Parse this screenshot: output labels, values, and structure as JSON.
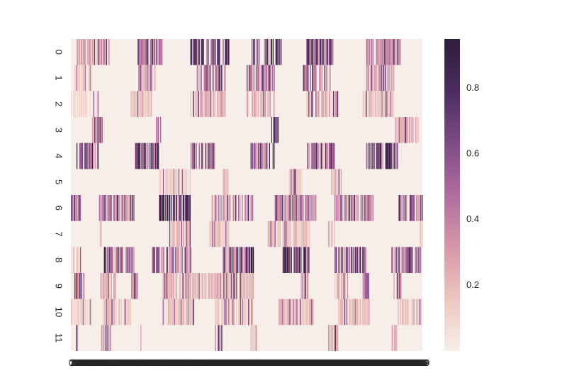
{
  "chart_data": {
    "type": "heatmap",
    "title": "",
    "xlabel": "",
    "ylabel": "",
    "rows": [
      "0",
      "1",
      "2",
      "3",
      "4",
      "5",
      "6",
      "7",
      "8",
      "9",
      "10",
      "11"
    ],
    "n_columns": 500,
    "value_range": [
      0.0,
      0.95
    ],
    "colormap": [
      "#f8eee9",
      "#edc7c0",
      "#d796a8",
      "#b06d9e",
      "#7d4c85",
      "#4a2d5e",
      "#2e1e3b"
    ],
    "colorbar": {
      "ticks": [
        0.2,
        0.4,
        0.6,
        0.8
      ],
      "tick_labels": [
        "0.2",
        "0.4",
        "0.6",
        "0.8"
      ]
    },
    "row_segments": [
      {
        "row": "0",
        "segments": [
          [
            8,
            55,
            0.35
          ],
          [
            95,
            130,
            0.55
          ],
          [
            170,
            225,
            0.75
          ],
          [
            255,
            300,
            0.8
          ],
          [
            335,
            375,
            0.8
          ],
          [
            420,
            470,
            0.45
          ]
        ]
      },
      {
        "row": "1",
        "segments": [
          [
            5,
            30,
            0.15
          ],
          [
            95,
            120,
            0.5
          ],
          [
            175,
            220,
            0.5
          ],
          [
            250,
            290,
            0.45
          ],
          [
            330,
            370,
            0.55
          ],
          [
            420,
            460,
            0.35
          ]
        ]
      },
      {
        "row": "2",
        "segments": [
          [
            0,
            40,
            0.12
          ],
          [
            85,
            115,
            0.25
          ],
          [
            170,
            220,
            0.3
          ],
          [
            250,
            290,
            0.3
          ],
          [
            335,
            380,
            0.3
          ],
          [
            415,
            460,
            0.22
          ]
        ]
      },
      {
        "row": "3",
        "segments": [
          [
            30,
            45,
            0.45
          ],
          [
            120,
            128,
            0.5
          ],
          [
            285,
            295,
            0.85
          ],
          [
            460,
            495,
            0.3
          ]
        ]
      },
      {
        "row": "4",
        "segments": [
          [
            8,
            40,
            0.6
          ],
          [
            90,
            125,
            0.75
          ],
          [
            170,
            205,
            0.5
          ],
          [
            255,
            290,
            0.65
          ],
          [
            335,
            375,
            0.55
          ],
          [
            420,
            465,
            0.8
          ]
        ]
      },
      {
        "row": "5",
        "segments": [
          [
            125,
            170,
            0.15
          ],
          [
            215,
            225,
            0.25
          ],
          [
            310,
            330,
            0.2
          ],
          [
            370,
            385,
            0.25
          ]
        ]
      },
      {
        "row": "6",
        "segments": [
          [
            0,
            15,
            0.6
          ],
          [
            40,
            90,
            0.55
          ],
          [
            125,
            170,
            0.85
          ],
          [
            200,
            260,
            0.45
          ],
          [
            290,
            350,
            0.5
          ],
          [
            375,
            430,
            0.5
          ],
          [
            465,
            500,
            0.55
          ]
        ]
      },
      {
        "row": "7",
        "segments": [
          [
            40,
            45,
            0.25
          ],
          [
            140,
            170,
            0.25
          ],
          [
            195,
            225,
            0.2
          ],
          [
            280,
            340,
            0.25
          ],
          [
            365,
            375,
            0.35
          ],
          [
            495,
            500,
            0.25
          ]
        ]
      },
      {
        "row": "8",
        "segments": [
          [
            0,
            15,
            0.18
          ],
          [
            45,
            90,
            0.6
          ],
          [
            115,
            175,
            0.55
          ],
          [
            215,
            260,
            0.75
          ],
          [
            300,
            340,
            0.8
          ],
          [
            375,
            420,
            0.65
          ],
          [
            455,
            500,
            0.6
          ]
        ]
      },
      {
        "row": "9",
        "segments": [
          [
            5,
            20,
            0.4
          ],
          [
            40,
            65,
            0.3
          ],
          [
            85,
            95,
            0.6
          ],
          [
            125,
            175,
            0.3
          ],
          [
            175,
            260,
            0.25
          ],
          [
            325,
            340,
            0.4
          ],
          [
            375,
            395,
            0.3
          ],
          [
            415,
            425,
            0.6
          ],
          [
            455,
            470,
            0.35
          ]
        ]
      },
      {
        "row": "10",
        "segments": [
          [
            0,
            30,
            0.15
          ],
          [
            45,
            85,
            0.25
          ],
          [
            130,
            175,
            0.2
          ],
          [
            205,
            260,
            0.2
          ],
          [
            295,
            345,
            0.25
          ],
          [
            380,
            425,
            0.2
          ],
          [
            465,
            500,
            0.22
          ]
        ]
      },
      {
        "row": "11",
        "segments": [
          [
            5,
            10,
            0.4
          ],
          [
            40,
            60,
            0.35
          ],
          [
            95,
            100,
            0.3
          ],
          [
            205,
            215,
            0.35
          ],
          [
            255,
            265,
            0.3
          ],
          [
            365,
            380,
            0.4
          ],
          [
            455,
            465,
            0.35
          ]
        ]
      }
    ]
  }
}
